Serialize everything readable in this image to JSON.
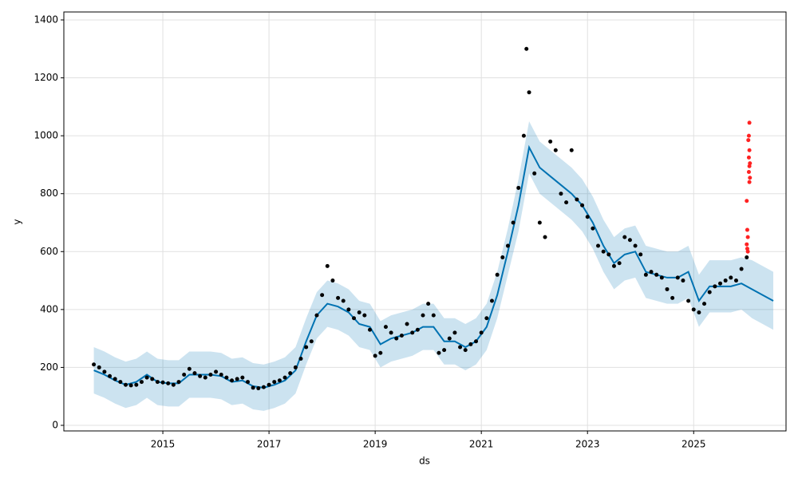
{
  "chart_data": {
    "type": "forecast",
    "x_label": "ds",
    "y_label": "y",
    "xlim": [
      2013.135,
      2026.74
    ],
    "ylim": [
      -19.3,
      1427.5
    ],
    "xticks": [
      2015,
      2017,
      2019,
      2021,
      2023,
      2025
    ],
    "yticks": [
      0,
      200,
      400,
      600,
      800,
      1000,
      1200,
      1400
    ],
    "grid": true,
    "series": [
      {
        "kind": "line",
        "color": "#0072B2",
        "band_color": "#0072B2",
        "x": [
          2013.7,
          2013.9,
          2014.1,
          2014.3,
          2014.5,
          2014.7,
          2014.9,
          2015.1,
          2015.3,
          2015.5,
          2015.7,
          2015.9,
          2016.1,
          2016.3,
          2016.5,
          2016.7,
          2016.9,
          2017.1,
          2017.3,
          2017.5,
          2017.7,
          2017.9,
          2018.1,
          2018.3,
          2018.5,
          2018.7,
          2018.9,
          2019.1,
          2019.3,
          2019.5,
          2019.7,
          2019.9,
          2020.1,
          2020.3,
          2020.5,
          2020.7,
          2020.9,
          2021.1,
          2021.3,
          2021.5,
          2021.7,
          2021.9,
          2022.1,
          2022.3,
          2022.5,
          2022.7,
          2022.9,
          2023.1,
          2023.3,
          2023.5,
          2023.7,
          2023.9,
          2024.1,
          2024.3,
          2024.5,
          2024.7,
          2024.9,
          2025.1,
          2025.3,
          2025.5,
          2025.7,
          2025.9,
          2026.1,
          2026.3,
          2026.5
        ],
        "values": [
          190,
          175,
          155,
          140,
          150,
          175,
          150,
          145,
          145,
          175,
          175,
          175,
          170,
          150,
          155,
          135,
          130,
          140,
          155,
          190,
          290,
          380,
          420,
          410,
          390,
          350,
          340,
          280,
          300,
          310,
          320,
          340,
          340,
          290,
          290,
          270,
          290,
          340,
          450,
          600,
          760,
          960,
          890,
          860,
          830,
          800,
          760,
          700,
          620,
          560,
          590,
          600,
          530,
          520,
          510,
          510,
          530,
          430,
          480,
          480,
          480,
          490,
          470,
          450,
          430
        ],
        "lower": [
          110,
          95,
          75,
          60,
          70,
          95,
          70,
          65,
          65,
          95,
          95,
          95,
          90,
          70,
          75,
          55,
          50,
          60,
          75,
          110,
          210,
          300,
          340,
          330,
          310,
          270,
          260,
          200,
          220,
          230,
          240,
          260,
          260,
          210,
          210,
          190,
          210,
          260,
          370,
          520,
          670,
          870,
          800,
          770,
          740,
          710,
          670,
          610,
          530,
          470,
          500,
          510,
          440,
          430,
          420,
          420,
          440,
          340,
          390,
          390,
          390,
          400,
          370,
          350,
          330
        ],
        "upper": [
          270,
          255,
          235,
          220,
          230,
          255,
          230,
          225,
          225,
          255,
          255,
          255,
          250,
          230,
          235,
          215,
          210,
          220,
          235,
          270,
          370,
          460,
          500,
          490,
          470,
          430,
          420,
          360,
          380,
          390,
          400,
          420,
          420,
          370,
          370,
          350,
          370,
          420,
          530,
          680,
          850,
          1050,
          980,
          950,
          920,
          890,
          850,
          790,
          710,
          650,
          680,
          690,
          620,
          610,
          600,
          600,
          620,
          520,
          570,
          570,
          570,
          580,
          570,
          550,
          530
        ]
      },
      {
        "kind": "scatter",
        "color": "#000000",
        "x": [
          2013.7,
          2013.8,
          2013.9,
          2014.0,
          2014.1,
          2014.2,
          2014.3,
          2014.4,
          2014.5,
          2014.6,
          2014.7,
          2014.8,
          2014.9,
          2015.0,
          2015.1,
          2015.2,
          2015.3,
          2015.4,
          2015.5,
          2015.6,
          2015.7,
          2015.8,
          2015.9,
          2016.0,
          2016.1,
          2016.2,
          2016.3,
          2016.4,
          2016.5,
          2016.6,
          2016.7,
          2016.8,
          2016.9,
          2017.0,
          2017.1,
          2017.2,
          2017.3,
          2017.4,
          2017.5,
          2017.6,
          2017.7,
          2017.8,
          2017.9,
          2018.0,
          2018.1,
          2018.2,
          2018.3,
          2018.4,
          2018.5,
          2018.6,
          2018.7,
          2018.8,
          2018.9,
          2019.0,
          2019.1,
          2019.2,
          2019.3,
          2019.4,
          2019.5,
          2019.6,
          2019.7,
          2019.8,
          2019.9,
          2020.0,
          2020.1,
          2020.2,
          2020.3,
          2020.4,
          2020.5,
          2020.6,
          2020.7,
          2020.8,
          2020.9,
          2021.0,
          2021.1,
          2021.2,
          2021.3,
          2021.4,
          2021.5,
          2021.6,
          2021.7,
          2021.8,
          2021.85,
          2021.9,
          2022.0,
          2022.1,
          2022.2,
          2022.3,
          2022.4,
          2022.5,
          2022.6,
          2022.7,
          2022.8,
          2022.9,
          2023.0,
          2023.1,
          2023.2,
          2023.3,
          2023.4,
          2023.5,
          2023.6,
          2023.7,
          2023.8,
          2023.9,
          2024.0,
          2024.1,
          2024.2,
          2024.3,
          2024.4,
          2024.5,
          2024.6,
          2024.7,
          2024.8,
          2024.9,
          2025.0,
          2025.1,
          2025.2,
          2025.3,
          2025.4,
          2025.5,
          2025.6,
          2025.7,
          2025.8,
          2025.9,
          2026.0
        ],
        "values": [
          210,
          200,
          185,
          170,
          160,
          150,
          140,
          138,
          140,
          150,
          165,
          160,
          150,
          148,
          145,
          140,
          150,
          175,
          195,
          180,
          170,
          165,
          175,
          185,
          175,
          165,
          155,
          160,
          165,
          150,
          130,
          128,
          132,
          140,
          150,
          155,
          165,
          180,
          200,
          230,
          270,
          290,
          380,
          450,
          550,
          500,
          440,
          430,
          400,
          370,
          390,
          380,
          330,
          240,
          250,
          340,
          320,
          300,
          310,
          350,
          320,
          330,
          380,
          420,
          380,
          250,
          260,
          300,
          320,
          270,
          260,
          280,
          290,
          320,
          370,
          430,
          520,
          580,
          620,
          700,
          820,
          1000,
          1300,
          1150,
          870,
          700,
          650,
          980,
          950,
          800,
          770,
          950,
          780,
          760,
          720,
          680,
          620,
          600,
          590,
          550,
          560,
          650,
          640,
          620,
          590,
          520,
          530,
          520,
          510,
          470,
          440,
          510,
          500,
          430,
          400,
          390,
          420,
          460,
          480,
          490,
          500,
          510,
          500,
          540,
          580
        ]
      },
      {
        "kind": "scatter",
        "color": "#ff2222",
        "x": [
          2026.05,
          2026.04,
          2026.03,
          2026.05,
          2026.04,
          2026.06,
          2026.05,
          2026.04,
          2026.06,
          2026.05,
          2026.0,
          2026.01,
          2026.02,
          2026.0,
          2026.01,
          2026.02
        ],
        "values": [
          1045,
          1000,
          985,
          950,
          925,
          905,
          895,
          875,
          855,
          840,
          775,
          675,
          650,
          625,
          610,
          600
        ]
      }
    ]
  }
}
